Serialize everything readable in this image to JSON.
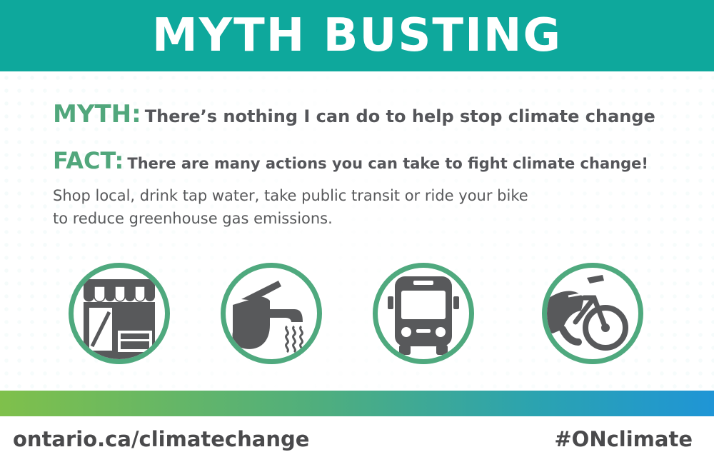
{
  "header": {
    "title": "MYTH BUSTING"
  },
  "myth": {
    "label": "MYTH:",
    "text": "There’s nothing I can do to help stop climate change"
  },
  "fact": {
    "label": "FACT:",
    "text": "There are many actions you can take to fight climate change!",
    "detail_line1": "Shop local, drink tap water, take public transit or ride your bike",
    "detail_line2": "to reduce greenhouse gas emissions."
  },
  "icons": [
    "shop-icon",
    "tap-water-icon",
    "bus-icon",
    "bicycle-icon"
  ],
  "colors": {
    "header": "#0ea89c",
    "accent_green": "#51a77c",
    "text_gray": "#58595b",
    "icon_gray": "#58595b",
    "gradient": [
      "#7fc04b",
      "#4fae7e",
      "#2ba3b0",
      "#1f95d6"
    ]
  },
  "footer": {
    "url": "ontario.ca/climatechange",
    "hashtag": "#ONclimate"
  }
}
